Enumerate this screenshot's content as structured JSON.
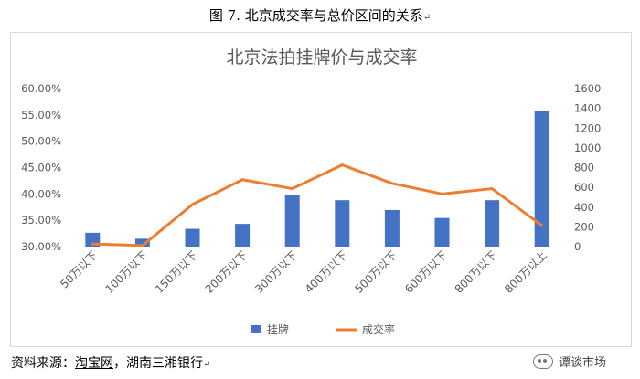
{
  "caption": {
    "text": "图 7.  北京成交率与总价区间的关系",
    "return_mark": "↵"
  },
  "source": {
    "prefix": "资料来源：",
    "link": "淘宝网",
    "rest": "，湖南三湘银行",
    "return_mark": "↵"
  },
  "watermark": {
    "text": "谭谈市场",
    "icon": "wechat-icon"
  },
  "chart_data": {
    "type": "bar",
    "title": "北京法拍挂牌价与成交率",
    "categories": [
      "50万以下",
      "100万以下",
      "150万以下",
      "200万以下",
      "300万以下",
      "400万以下",
      "500万以下",
      "600万以下",
      "800万以下",
      "800万以上"
    ],
    "series": [
      {
        "name": "挂牌",
        "type": "bar",
        "axis": "right",
        "color": "#4472c4",
        "values": [
          140,
          80,
          180,
          230,
          520,
          470,
          370,
          290,
          470,
          1370
        ]
      },
      {
        "name": "成交率",
        "type": "line",
        "axis": "left",
        "color": "#ed7d31",
        "values": [
          0.305,
          0.302,
          0.38,
          0.427,
          0.41,
          0.455,
          0.42,
          0.4,
          0.41,
          0.34
        ]
      }
    ],
    "y_left": {
      "min": 0.3,
      "max": 0.6,
      "ticks": [
        "30.00%",
        "35.00%",
        "40.00%",
        "45.00%",
        "50.00%",
        "55.00%",
        "60.00%"
      ]
    },
    "y_right": {
      "min": 0,
      "max": 1600,
      "ticks": [
        "0",
        "200",
        "400",
        "600",
        "800",
        "1000",
        "1200",
        "1400",
        "1600"
      ]
    },
    "grid": false,
    "legend": "bottom"
  }
}
